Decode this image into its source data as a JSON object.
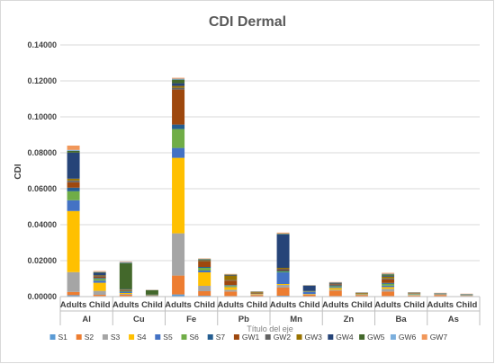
{
  "chart_data": {
    "type": "bar",
    "stacked": true,
    "title": "CDI Dermal",
    "xlabel": "Título del eje",
    "ylabel": "CDI",
    "ylim": [
      0,
      0.14
    ],
    "yticks": [
      "0.00000",
      "0.02000",
      "0.04000",
      "0.06000",
      "0.08000",
      "0.10000",
      "0.12000",
      "0.14000"
    ],
    "groups": [
      "Al",
      "Cu",
      "Fe",
      "Pb",
      "Mn",
      "Zn",
      "Ba",
      "As"
    ],
    "subcategories": [
      "Adults",
      "Child"
    ],
    "categories": [
      "Adults",
      "Child",
      "Adults",
      "Child",
      "Adults",
      "Child",
      "Adults",
      "Child",
      "Adults",
      "Child",
      "Adults",
      "Child",
      "Adults",
      "Child",
      "Adults",
      "Child"
    ],
    "grid": true,
    "legend_position": "bottom",
    "series": [
      {
        "name": "S1",
        "color": "#5b9bd5",
        "values": [
          0.0008,
          0.0003,
          0.0002,
          0.0001,
          0.0012,
          0.0005,
          0.0003,
          0.0001,
          0.0005,
          0.0002,
          0.0003,
          0.0001,
          0.0003,
          0.0001,
          0.0001,
          0.0001
        ]
      },
      {
        "name": "S2",
        "color": "#ed7d31",
        "values": [
          0.0018,
          0.0007,
          0.0008,
          0.0001,
          0.0105,
          0.0025,
          0.0025,
          0.0008,
          0.0045,
          0.0008,
          0.003,
          0.0008,
          0.0025,
          0.0005,
          0.0008,
          0.0003
        ]
      },
      {
        "name": "S3",
        "color": "#a5a5a5",
        "values": [
          0.011,
          0.0022,
          0.0005,
          0.0001,
          0.0235,
          0.003,
          0.001,
          0.0002,
          0.0015,
          0.0003,
          0.0005,
          0.0001,
          0.0015,
          0.0003,
          0.0001,
          0.0001
        ]
      },
      {
        "name": "S4",
        "color": "#ffc000",
        "values": [
          0.034,
          0.0045,
          0.0005,
          0.0001,
          0.042,
          0.0075,
          0.0015,
          0.0003,
          0.0005,
          0.0002,
          0.001,
          0.0002,
          0.001,
          0.0002,
          0.0001,
          0.0001
        ]
      },
      {
        "name": "S5",
        "color": "#4472c4",
        "values": [
          0.006,
          0.0012,
          0.0005,
          0.0001,
          0.0055,
          0.001,
          0.0003,
          0.0001,
          0.0065,
          0.001,
          0.0005,
          0.0001,
          0.0008,
          0.0002,
          0.0001,
          0.0001
        ]
      },
      {
        "name": "S6",
        "color": "#70ad47",
        "values": [
          0.005,
          0.001,
          0.0003,
          0.0001,
          0.0105,
          0.0015,
          0.0005,
          0.0001,
          0.0005,
          0.0002,
          0.0005,
          0.0001,
          0.001,
          0.0002,
          0.0001,
          0.0001
        ]
      },
      {
        "name": "S7",
        "color": "#255e91",
        "values": [
          0.002,
          0.0005,
          0.0002,
          0.0001,
          0.0025,
          0.0005,
          0.0003,
          0.0001,
          0.0005,
          0.0001,
          0.0005,
          0.0001,
          0.0005,
          0.0001,
          0.0001,
          0.0001
        ]
      },
      {
        "name": "GW1",
        "color": "#9e480e",
        "values": [
          0.003,
          0.0008,
          0.0003,
          0.0001,
          0.0195,
          0.003,
          0.0025,
          0.0004,
          0.0005,
          0.0001,
          0.0005,
          0.0001,
          0.002,
          0.0002,
          0.0001,
          0.0001
        ]
      },
      {
        "name": "GW2",
        "color": "#636363",
        "values": [
          0.001,
          0.0003,
          0.0003,
          0.0001,
          0.001,
          0.0003,
          0.0003,
          0.0001,
          0.0005,
          0.0001,
          0.0002,
          0.0001,
          0.0005,
          0.0001,
          0.0001,
          0.0001
        ]
      },
      {
        "name": "GW3",
        "color": "#997300",
        "values": [
          0.001,
          0.0003,
          0.0003,
          0.0001,
          0.001,
          0.0005,
          0.0025,
          0.0004,
          0.0005,
          0.0001,
          0.0002,
          0.0003,
          0.001,
          0.0002,
          0.0001,
          0.0001
        ]
      },
      {
        "name": "GW4",
        "color": "#264478",
        "values": [
          0.0145,
          0.0015,
          0.0003,
          0.0001,
          0.0015,
          0.0003,
          0.0003,
          0.0001,
          0.0185,
          0.003,
          0.0005,
          0.0001,
          0.0005,
          0.0001,
          0.0001,
          0.0001
        ]
      },
      {
        "name": "GW5",
        "color": "#43682b",
        "values": [
          0.001,
          0.0003,
          0.0145,
          0.0025,
          0.002,
          0.0003,
          0.0002,
          0.0001,
          0.0003,
          0.0001,
          0.0001,
          0.0001,
          0.0008,
          0.0001,
          0.0001,
          0.0001
        ]
      },
      {
        "name": "GW6",
        "color": "#7cafdd",
        "values": [
          0.0005,
          0.0002,
          0.0005,
          0.0001,
          0.0005,
          0.0001,
          0.0001,
          0.0001,
          0.0003,
          0.0001,
          0.0001,
          0.0001,
          0.0003,
          0.0001,
          0.0001,
          0.0001
        ]
      },
      {
        "name": "GW7",
        "color": "#f1975a",
        "values": [
          0.0024,
          0.0004,
          0.0003,
          0.0001,
          0.0005,
          0.0002,
          0.0003,
          0.0001,
          0.0005,
          0.0001,
          0.0002,
          0.0001,
          0.0005,
          0.0001,
          0.0001,
          0.0001
        ]
      }
    ]
  }
}
